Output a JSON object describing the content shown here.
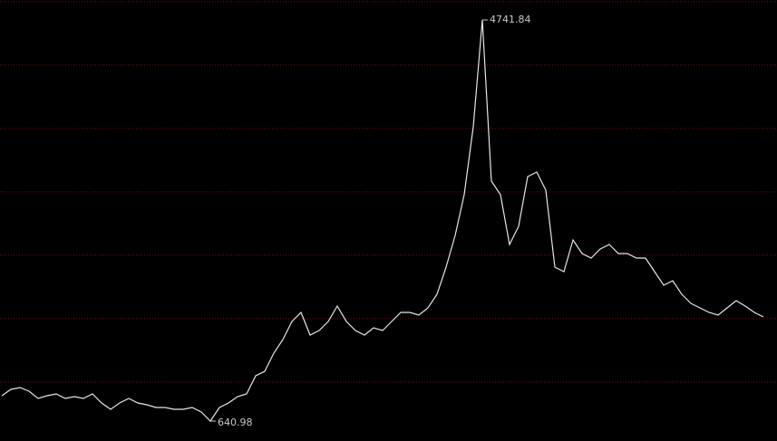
{
  "chart_data": {
    "type": "line",
    "series": [
      {
        "color": "#e6e6e6",
        "values": [
          900.2,
          965.0,
          983.5,
          946.5,
          872.4,
          900.2,
          918.7,
          872.4,
          890.9,
          872.4,
          918.7,
          826.1,
          761.3,
          826.1,
          872.4,
          826.1,
          807.6,
          779.9,
          779.9,
          761.3,
          761.3,
          779.9,
          733.6,
          640.98,
          779.9,
          826.1,
          890.9,
          918.7,
          1103.9,
          1150.1,
          1335.3,
          1474.1,
          1659.3,
          1751.8,
          1520.4,
          1566.7,
          1659.3,
          1816.6,
          1659.3,
          1566.7,
          1520.4,
          1594.5,
          1566.7,
          1659.3,
          1751.8,
          1751.8,
          1724.1,
          1798.1,
          1937.0,
          2214.7,
          2538.7,
          2955.3,
          3649.5,
          4741.84,
          3094.1,
          2955.3,
          2446.1,
          2631.3,
          3140.4,
          3186.7,
          3001.5,
          2214.7,
          2168.4,
          2492.4,
          2353.5,
          2307.3,
          2399.8,
          2446.1,
          2353.5,
          2353.5,
          2307.3,
          2307.3,
          2168.4,
          2029.6,
          2075.8,
          1937.0,
          1844.4,
          1798.1,
          1751.8,
          1724.1,
          1798.1,
          1872.2,
          1816.6,
          1751.8,
          1705.6
        ]
      }
    ],
    "ylim": [
      437.3,
      4945.5
    ],
    "yticks": [
      1040,
      1688,
      2336,
      2984,
      3632,
      4280,
      4928
    ],
    "grid": true,
    "grid_color": "#7a0a0a"
  }
}
